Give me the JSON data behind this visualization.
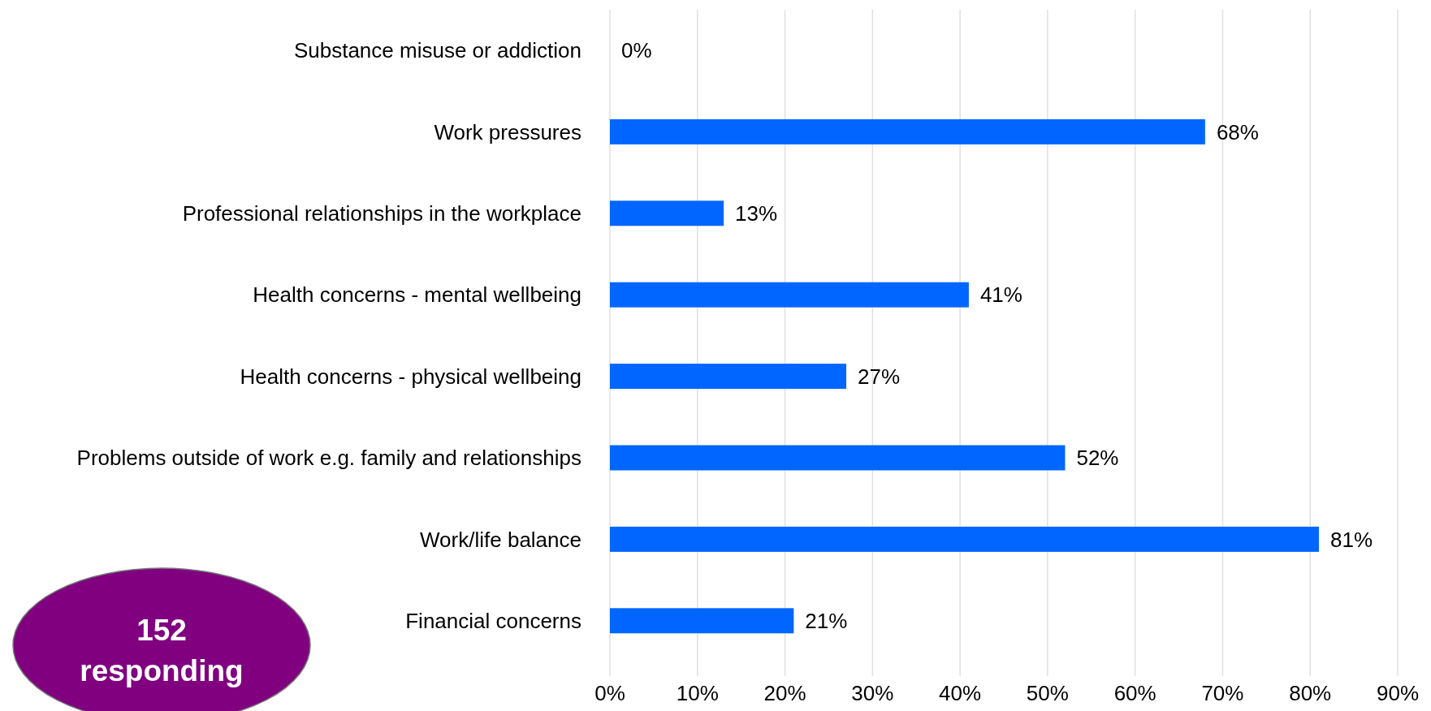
{
  "chart_data": {
    "type": "bar",
    "orientation": "horizontal",
    "categories": [
      "Substance misuse or addiction",
      "Work pressures",
      "Professional relationships in the workplace",
      "Health concerns - mental wellbeing",
      "Health concerns - physical wellbeing",
      "Problems outside of work e.g. family and relationships",
      "Work/life balance",
      "Financial concerns"
    ],
    "values": [
      0,
      68,
      13,
      41,
      27,
      52,
      81,
      21
    ],
    "color": "#0066ff",
    "value_labels": [
      "0%",
      "68%",
      "13%",
      "41%",
      "27%",
      "52%",
      "81%",
      "21%"
    ],
    "xlim": [
      0,
      90
    ],
    "xticks": [
      {
        "value": 0,
        "label": "0%"
      },
      {
        "value": 10,
        "label": "10%"
      },
      {
        "value": 20,
        "label": "20%"
      },
      {
        "value": 30,
        "label": "30%"
      },
      {
        "value": 40,
        "label": "40%"
      },
      {
        "value": 50,
        "label": "50%"
      },
      {
        "value": 60,
        "label": "60%"
      },
      {
        "value": 70,
        "label": "70%"
      },
      {
        "value": 80,
        "label": "80%"
      },
      {
        "value": 90,
        "label": "90%"
      }
    ],
    "grid": "x",
    "annotations": [
      "152 responding"
    ]
  }
}
